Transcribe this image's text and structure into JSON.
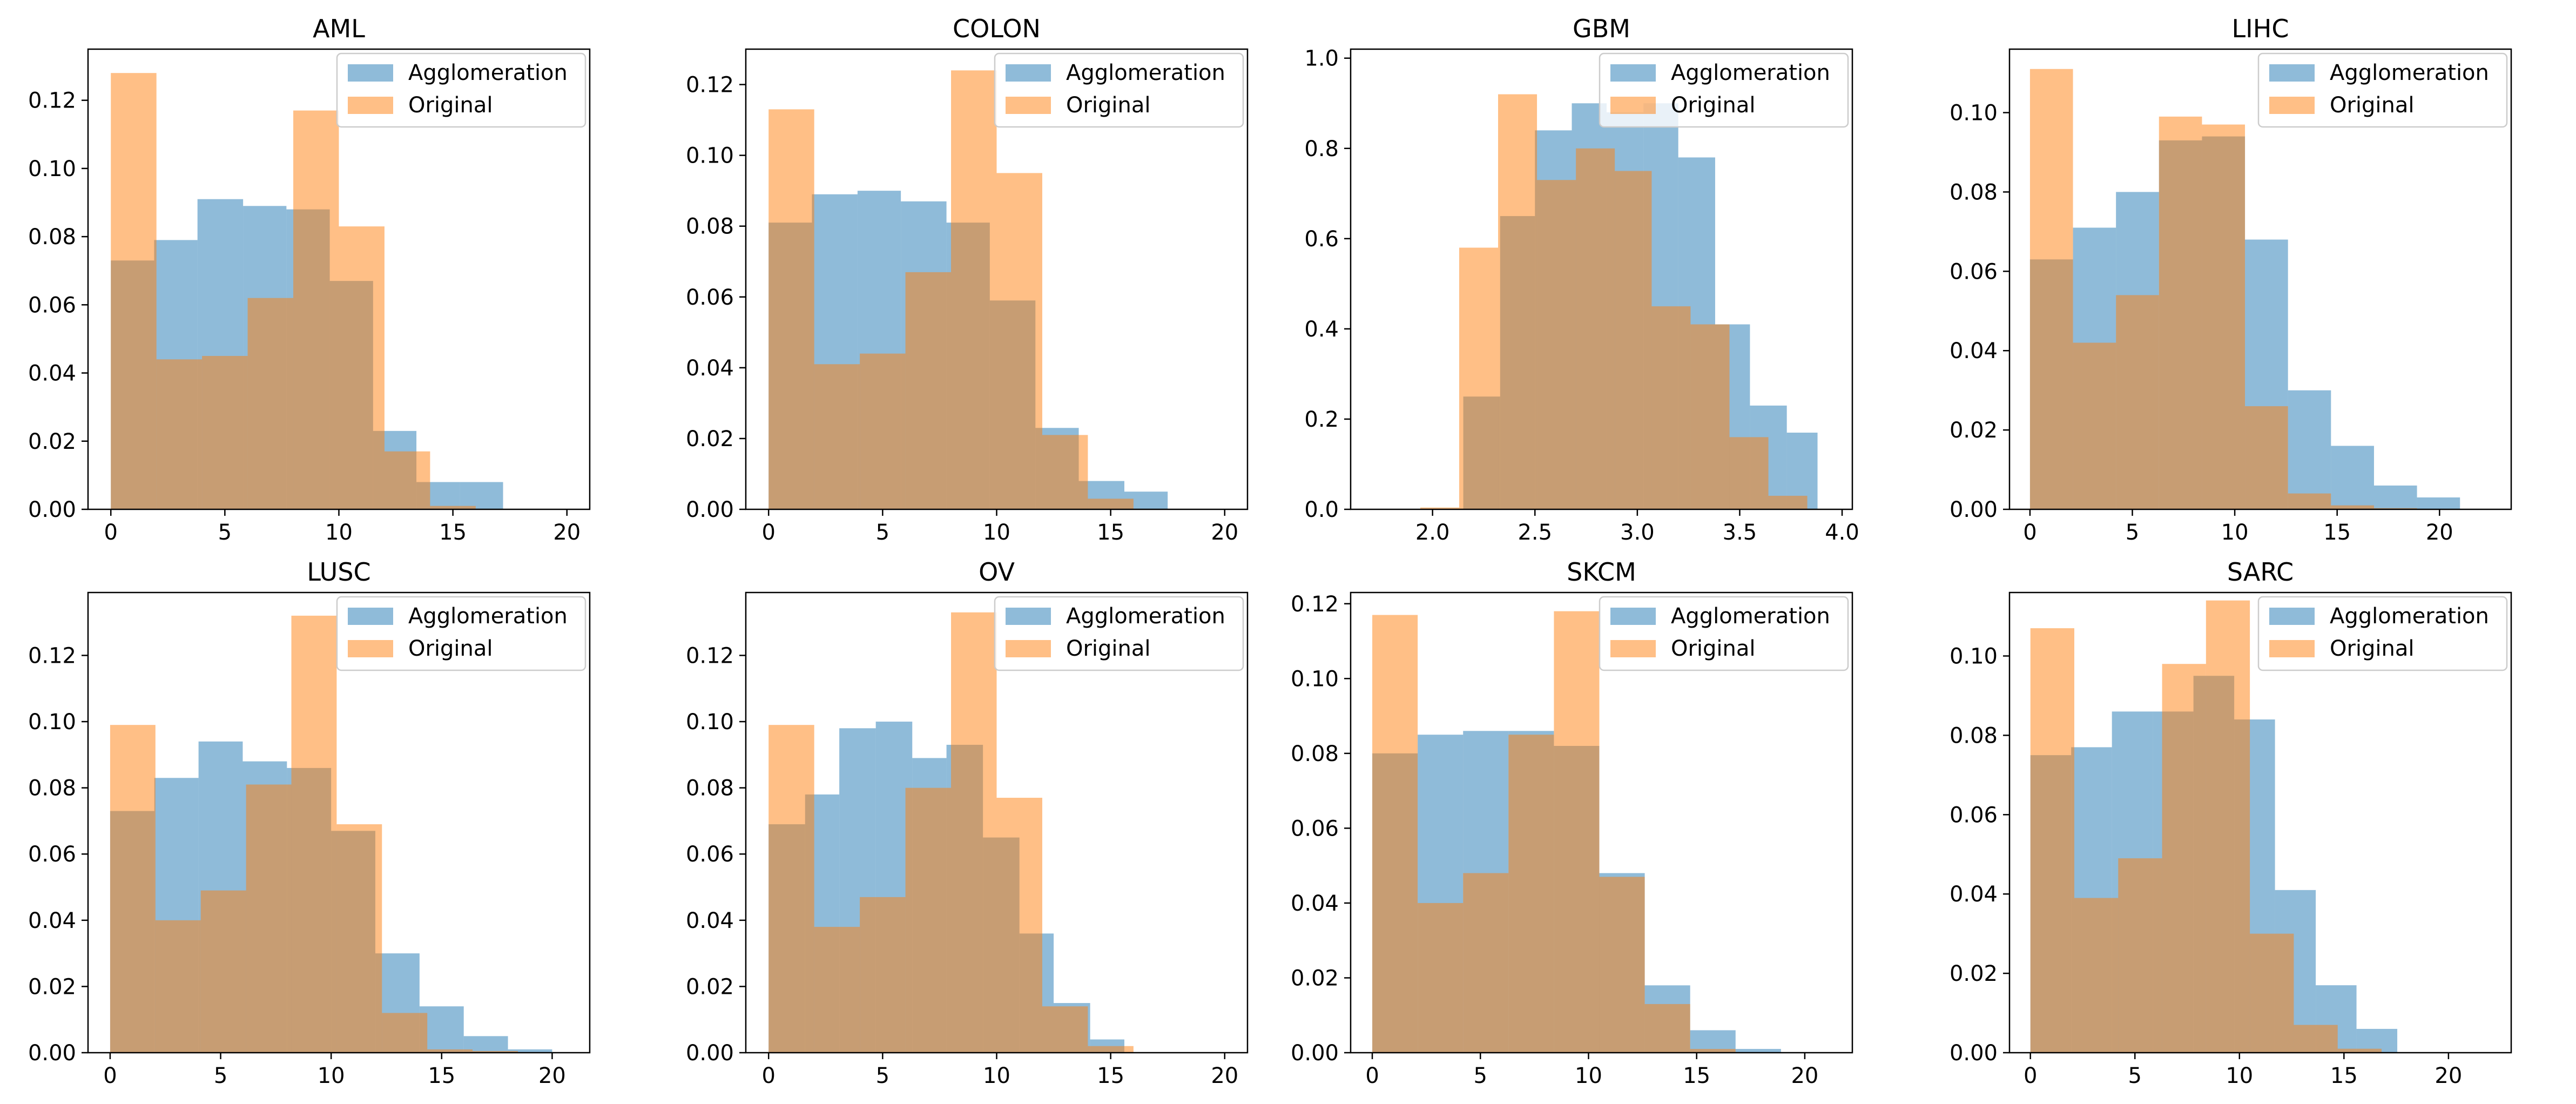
{
  "chart_data": [
    {
      "type": "histogram",
      "title": "AML",
      "xlim": [
        -1.0,
        21.0
      ],
      "ylim": [
        0.0,
        0.135
      ],
      "xticks": [
        0,
        5,
        10,
        15,
        20
      ],
      "yticks": [
        0.0,
        0.02,
        0.04,
        0.06,
        0.08,
        0.1,
        0.12
      ],
      "legend": {
        "position": "top-right",
        "entries": [
          "Agglomeration",
          "Original"
        ]
      },
      "series": [
        {
          "name": "Agglomeration",
          "color": "#1f77b4",
          "edges": [
            0,
            1.9,
            3.8,
            5.8,
            7.7,
            9.6,
            11.5,
            13.4,
            15.3,
            17.2
          ],
          "values": [
            0.073,
            0.079,
            0.091,
            0.089,
            0.088,
            0.067,
            0.023,
            0.008,
            0.008
          ]
        },
        {
          "name": "Original",
          "color": "#ff7f0e",
          "edges": [
            0,
            2.0,
            4.0,
            6.0,
            8.0,
            10.0,
            12.0,
            14.0,
            16.0
          ],
          "values": [
            0.128,
            0.044,
            0.045,
            0.062,
            0.117,
            0.083,
            0.017,
            0.001
          ]
        }
      ]
    },
    {
      "type": "histogram",
      "title": "COLON",
      "xlim": [
        -1.0,
        21.0
      ],
      "ylim": [
        0.0,
        0.13
      ],
      "xticks": [
        0,
        5,
        10,
        15,
        20
      ],
      "yticks": [
        0.0,
        0.02,
        0.04,
        0.06,
        0.08,
        0.1,
        0.12
      ],
      "legend": {
        "position": "top-right",
        "entries": [
          "Agglomeration",
          "Original"
        ]
      },
      "series": [
        {
          "name": "Agglomeration",
          "color": "#1f77b4",
          "edges": [
            0,
            1.9,
            3.9,
            5.8,
            7.8,
            9.7,
            11.7,
            13.6,
            15.6,
            17.5
          ],
          "values": [
            0.081,
            0.089,
            0.09,
            0.087,
            0.081,
            0.059,
            0.023,
            0.008,
            0.005
          ]
        },
        {
          "name": "Original",
          "color": "#ff7f0e",
          "edges": [
            0,
            2.0,
            4.0,
            6.0,
            8.0,
            10.0,
            12.0,
            14.0,
            16.0
          ],
          "values": [
            0.113,
            0.041,
            0.044,
            0.067,
            0.124,
            0.095,
            0.021,
            0.003
          ]
        }
      ]
    },
    {
      "type": "histogram",
      "title": "GBM",
      "xlim": [
        1.6,
        4.05
      ],
      "ylim": [
        0.0,
        1.02
      ],
      "xticks": [
        2.0,
        2.5,
        3.0,
        3.5,
        4.0
      ],
      "yticks": [
        0.0,
        0.2,
        0.4,
        0.6,
        0.8,
        1.0
      ],
      "legend": {
        "position": "top-right",
        "entries": [
          "Agglomeration",
          "Original"
        ]
      },
      "series": [
        {
          "name": "Agglomeration",
          "color": "#1f77b4",
          "edges": [
            2.15,
            2.33,
            2.5,
            2.68,
            2.85,
            3.03,
            3.2,
            3.38,
            3.55,
            3.73,
            3.88
          ],
          "values": [
            0.25,
            0.65,
            0.84,
            0.9,
            0.88,
            0.9,
            0.78,
            0.41,
            0.23,
            0.17
          ]
        },
        {
          "name": "Original",
          "color": "#ff7f0e",
          "edges": [
            1.94,
            2.13,
            2.32,
            2.51,
            2.7,
            2.89,
            3.07,
            3.26,
            3.45,
            3.64,
            3.83
          ],
          "values": [
            0.004,
            0.58,
            0.92,
            0.73,
            0.8,
            0.75,
            0.45,
            0.41,
            0.16,
            0.03
          ]
        }
      ]
    },
    {
      "type": "histogram",
      "title": "LIHC",
      "xlim": [
        -1.0,
        23.5
      ],
      "ylim": [
        0.0,
        0.116
      ],
      "xticks": [
        0,
        5,
        10,
        15,
        20
      ],
      "yticks": [
        0.0,
        0.02,
        0.04,
        0.06,
        0.08,
        0.1
      ],
      "legend": {
        "position": "top-right",
        "entries": [
          "Agglomeration",
          "Original"
        ]
      },
      "series": [
        {
          "name": "Agglomeration",
          "color": "#1f77b4",
          "edges": [
            0,
            2.1,
            4.2,
            6.3,
            8.4,
            10.5,
            12.6,
            14.7,
            16.8,
            18.9,
            21.0
          ],
          "values": [
            0.063,
            0.071,
            0.08,
            0.093,
            0.094,
            0.068,
            0.03,
            0.016,
            0.006,
            0.003
          ]
        },
        {
          "name": "Original",
          "color": "#ff7f0e",
          "edges": [
            0,
            2.1,
            4.2,
            6.3,
            8.4,
            10.5,
            12.6,
            14.7,
            16.8,
            18.9
          ],
          "values": [
            0.111,
            0.042,
            0.054,
            0.099,
            0.097,
            0.026,
            0.004,
            0.001,
            0.0003
          ]
        }
      ]
    },
    {
      "type": "histogram",
      "title": "LUSC",
      "xlim": [
        -1.0,
        21.7
      ],
      "ylim": [
        0.0,
        0.139
      ],
      "xticks": [
        0,
        5,
        10,
        15,
        20
      ],
      "yticks": [
        0.0,
        0.02,
        0.04,
        0.06,
        0.08,
        0.1,
        0.12
      ],
      "legend": {
        "position": "top-right",
        "entries": [
          "Agglomeration",
          "Original"
        ]
      },
      "series": [
        {
          "name": "Agglomeration",
          "color": "#1f77b4",
          "edges": [
            0,
            2.0,
            4.0,
            6.0,
            8.0,
            10.0,
            12.0,
            14.0,
            16.0,
            18.0,
            20.0
          ],
          "values": [
            0.073,
            0.083,
            0.094,
            0.088,
            0.086,
            0.067,
            0.03,
            0.014,
            0.005,
            0.001
          ]
        },
        {
          "name": "Original",
          "color": "#ff7f0e",
          "edges": [
            0,
            2.05,
            4.1,
            6.15,
            8.2,
            10.25,
            12.3,
            14.35,
            16.4,
            18.45
          ],
          "values": [
            0.099,
            0.04,
            0.049,
            0.081,
            0.132,
            0.069,
            0.012,
            0.001,
            0.0005
          ]
        }
      ]
    },
    {
      "type": "histogram",
      "title": "OV",
      "xlim": [
        -1.0,
        21.0
      ],
      "ylim": [
        0.0,
        0.139
      ],
      "xticks": [
        0,
        5,
        10,
        15,
        20
      ],
      "yticks": [
        0.0,
        0.02,
        0.04,
        0.06,
        0.08,
        0.1,
        0.12
      ],
      "legend": {
        "position": "top-right",
        "entries": [
          "Agglomeration",
          "Original"
        ]
      },
      "series": [
        {
          "name": "Agglomeration",
          "color": "#1f77b4",
          "edges": [
            0,
            1.6,
            3.1,
            4.7,
            6.3,
            7.8,
            9.4,
            11.0,
            12.5,
            14.1,
            15.6
          ],
          "values": [
            0.069,
            0.078,
            0.098,
            0.1,
            0.089,
            0.093,
            0.065,
            0.036,
            0.015,
            0.004
          ]
        },
        {
          "name": "Original",
          "color": "#ff7f0e",
          "edges": [
            0,
            2.0,
            4.0,
            6.0,
            8.0,
            10.0,
            12.0,
            14.0,
            16.0
          ],
          "values": [
            0.099,
            0.038,
            0.047,
            0.08,
            0.133,
            0.077,
            0.014,
            0.002
          ]
        }
      ]
    },
    {
      "type": "histogram",
      "title": "SKCM",
      "xlim": [
        -1.0,
        22.2
      ],
      "ylim": [
        0.0,
        0.123
      ],
      "xticks": [
        0,
        5,
        10,
        15,
        20
      ],
      "yticks": [
        0.0,
        0.02,
        0.04,
        0.06,
        0.08,
        0.1,
        0.12
      ],
      "legend": {
        "position": "top-right",
        "entries": [
          "Agglomeration",
          "Original"
        ]
      },
      "series": [
        {
          "name": "Agglomeration",
          "color": "#1f77b4",
          "edges": [
            0,
            2.1,
            4.2,
            6.3,
            8.4,
            10.5,
            12.6,
            14.7,
            16.8,
            18.9
          ],
          "values": [
            0.08,
            0.085,
            0.086,
            0.086,
            0.082,
            0.048,
            0.018,
            0.006,
            0.001
          ]
        },
        {
          "name": "Original",
          "color": "#ff7f0e",
          "edges": [
            0,
            2.1,
            4.2,
            6.3,
            8.4,
            10.5,
            12.6,
            14.7,
            16.8
          ],
          "values": [
            0.117,
            0.04,
            0.048,
            0.085,
            0.118,
            0.047,
            0.013,
            0.001
          ]
        }
      ]
    },
    {
      "type": "histogram",
      "title": "SARC",
      "xlim": [
        -1.0,
        23.0
      ],
      "ylim": [
        0.0,
        0.116
      ],
      "xticks": [
        0,
        5,
        10,
        15,
        20
      ],
      "yticks": [
        0.0,
        0.02,
        0.04,
        0.06,
        0.08,
        0.1
      ],
      "legend": {
        "position": "top-right",
        "entries": [
          "Agglomeration",
          "Original"
        ]
      },
      "series": [
        {
          "name": "Agglomeration",
          "color": "#1f77b4",
          "edges": [
            0,
            1.95,
            3.9,
            5.85,
            7.8,
            9.75,
            11.7,
            13.65,
            15.6,
            17.55
          ],
          "values": [
            0.075,
            0.077,
            0.086,
            0.086,
            0.095,
            0.084,
            0.041,
            0.017,
            0.006
          ]
        },
        {
          "name": "Original",
          "color": "#ff7f0e",
          "edges": [
            0,
            2.1,
            4.2,
            6.3,
            8.4,
            10.5,
            12.6,
            14.7,
            16.8
          ],
          "values": [
            0.107,
            0.039,
            0.049,
            0.098,
            0.114,
            0.03,
            0.007,
            0.001
          ]
        }
      ]
    }
  ]
}
